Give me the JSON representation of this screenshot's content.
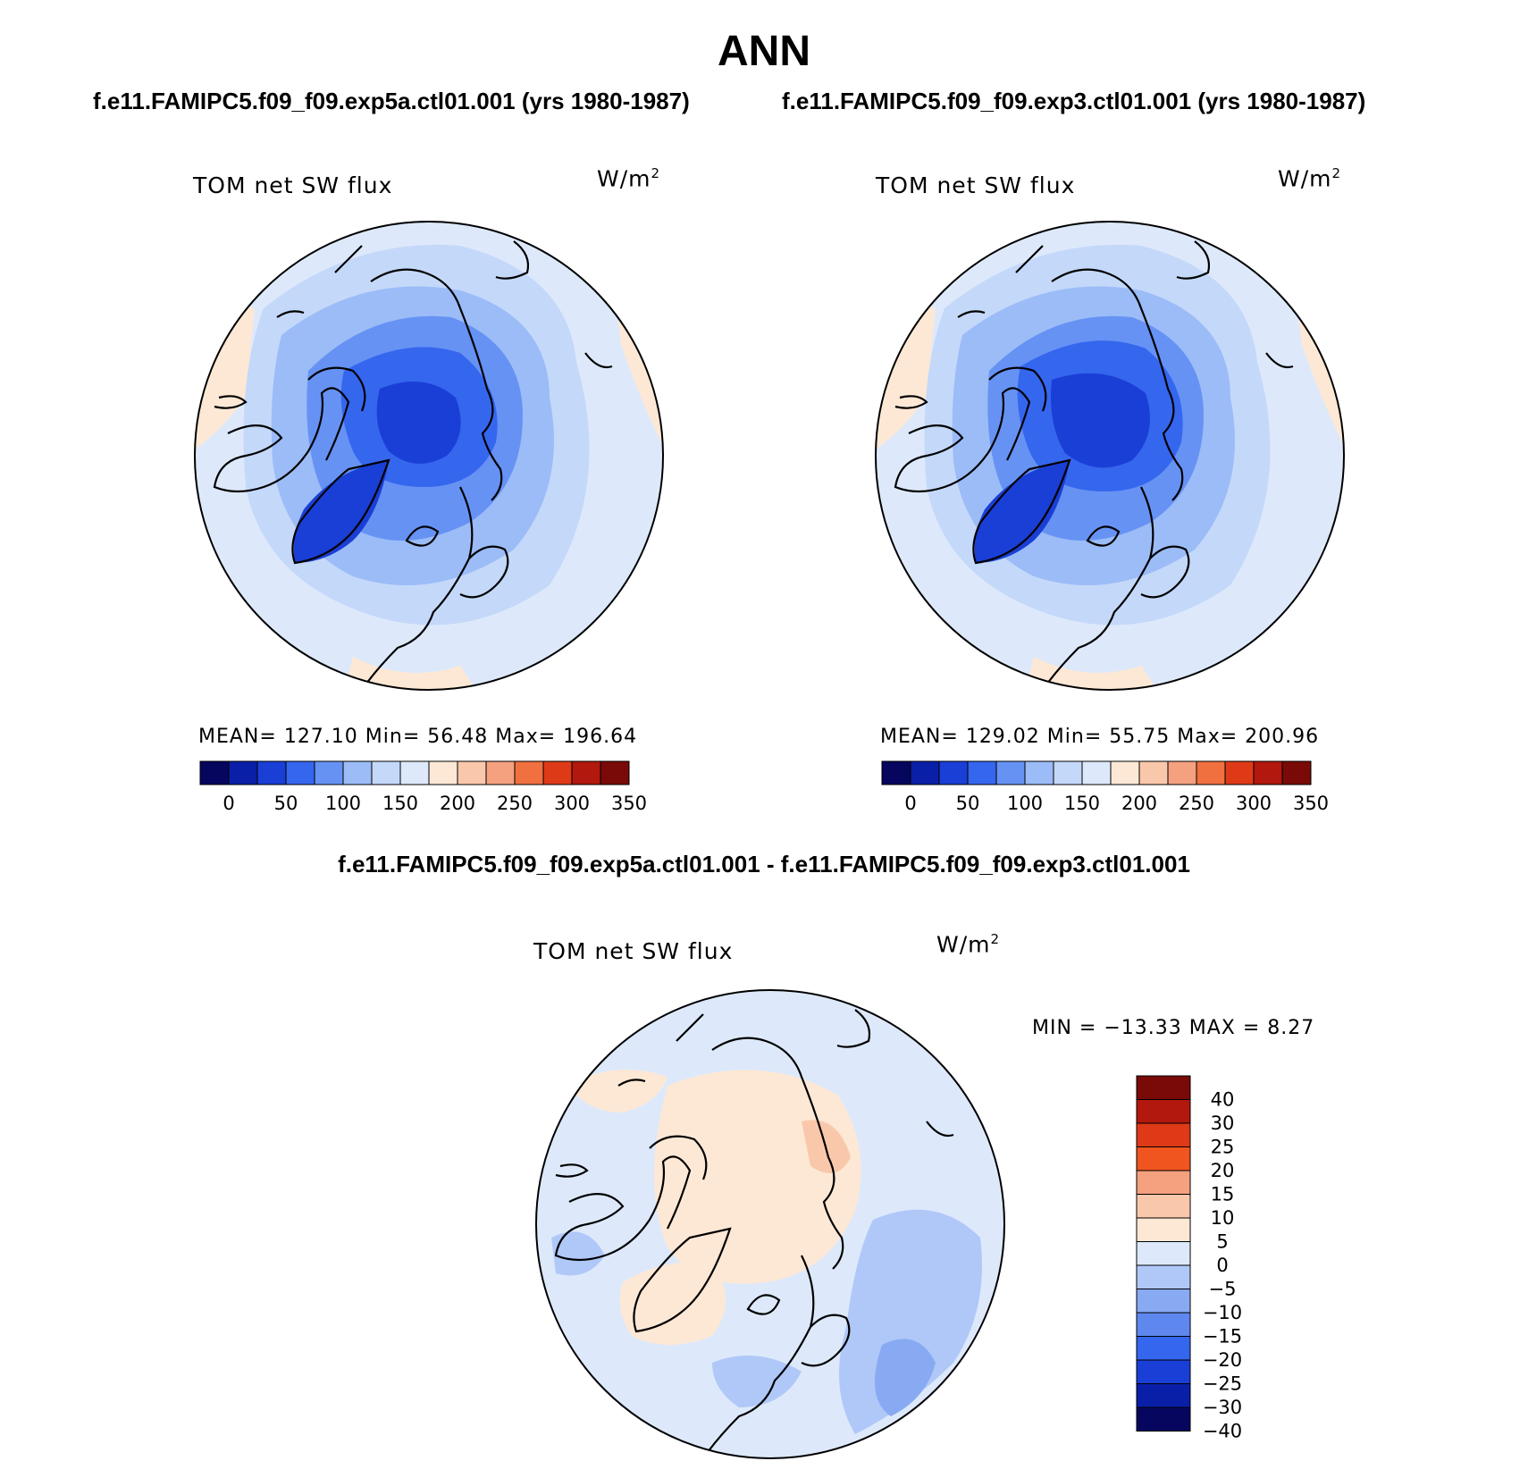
{
  "figure": {
    "title": "ANN",
    "subtitle_left": "f.e11.FAMIPC5.f09_f09.exp5a.ctl01.001 (yrs 1980-1987)",
    "subtitle_right": "f.e11.FAMIPC5.f09_f09.exp3.ctl01.001 (yrs 1980-1987)",
    "diff_title": "f.e11.FAMIPC5.f09_f09.exp5a.ctl01.001 - f.e11.FAMIPC5.f09_f09.exp3.ctl01.001"
  },
  "panels": {
    "left": {
      "label": "TOM net SW flux",
      "units_base": "W/m",
      "units_exp": "2",
      "stats": "MEAN= 127.10   Min=  56.48   Max= 196.64"
    },
    "right": {
      "label": "TOM net SW flux",
      "units_base": "W/m",
      "units_exp": "2",
      "stats": "MEAN= 129.02   Min=  55.75   Max= 200.96"
    },
    "diff": {
      "label": "TOM net SW flux",
      "units_base": "W/m",
      "units_exp": "2",
      "stats": "MIN = −13.33 MAX =    8.27"
    }
  },
  "colorbars": {
    "absolute": {
      "colors": [
        "#06065f",
        "#0a1fa8",
        "#1a3fd6",
        "#3566ee",
        "#6692f4",
        "#9bbcf7",
        "#c4d8fa",
        "#dde9fb",
        "#fde8d5",
        "#f9c8ab",
        "#f5a07f",
        "#f0703f",
        "#de3a17",
        "#b2180d",
        "#7a0a08"
      ],
      "tick_labels": [
        "0",
        "50",
        "100",
        "150",
        "200",
        "250",
        "300",
        "350"
      ]
    },
    "difference": {
      "colors": [
        "#7a0a08",
        "#b2180d",
        "#de3a17",
        "#f0551f",
        "#f5a07f",
        "#f9c8ab",
        "#fde8d5",
        "#dde9fb",
        "#b0c8f8",
        "#88aaf3",
        "#5e88ee",
        "#3566ee",
        "#1a3fd6",
        "#0a1fa8",
        "#06065f"
      ],
      "tick_labels": [
        "40",
        "30",
        "25",
        "20",
        "15",
        "10",
        "5",
        "0",
        "−5",
        "−10",
        "−15",
        "−20",
        "−25",
        "−30",
        "−40"
      ]
    }
  },
  "map_data": {
    "projection": "north polar stereographic",
    "variable": "TOM net SW flux",
    "units": "W/m2",
    "maps": [
      "exp5a.ctl01.001",
      "exp3.ctl01.001",
      "exp5a - exp3 difference"
    ]
  }
}
